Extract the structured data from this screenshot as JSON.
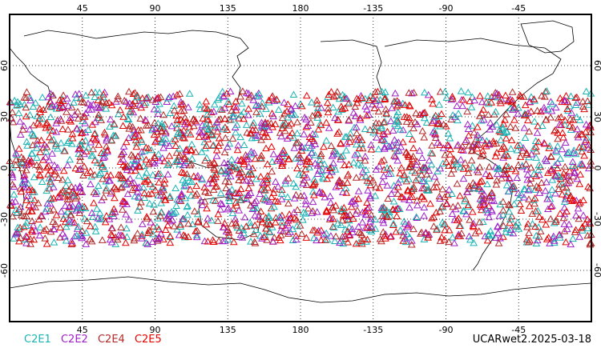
{
  "map": {
    "lon_ticks": [
      "45",
      "90",
      "135",
      "180",
      "-135",
      "-90",
      "-45"
    ],
    "lat_ticks": [
      "60",
      "30",
      "0",
      "-30",
      "-60"
    ],
    "lon_values": [
      45,
      90,
      135,
      180,
      225,
      270,
      315
    ],
    "lat_values": [
      60,
      30,
      0,
      -30,
      -60
    ],
    "lon_range": [
      0,
      360
    ],
    "lat_range": [
      -90,
      90
    ],
    "grid": "dotted",
    "marker": "triangle-outline",
    "obs_lat_range": [
      -45,
      45
    ]
  },
  "legend": {
    "items": [
      {
        "label": "C2E1",
        "color": "#18b4b4"
      },
      {
        "label": "C2E2",
        "color": "#a020c8"
      },
      {
        "label": "C2E4",
        "color": "#b42828"
      },
      {
        "label": "C2E5",
        "color": "#e60000"
      }
    ]
  },
  "caption": "UCARwet2.2025-03-18"
}
